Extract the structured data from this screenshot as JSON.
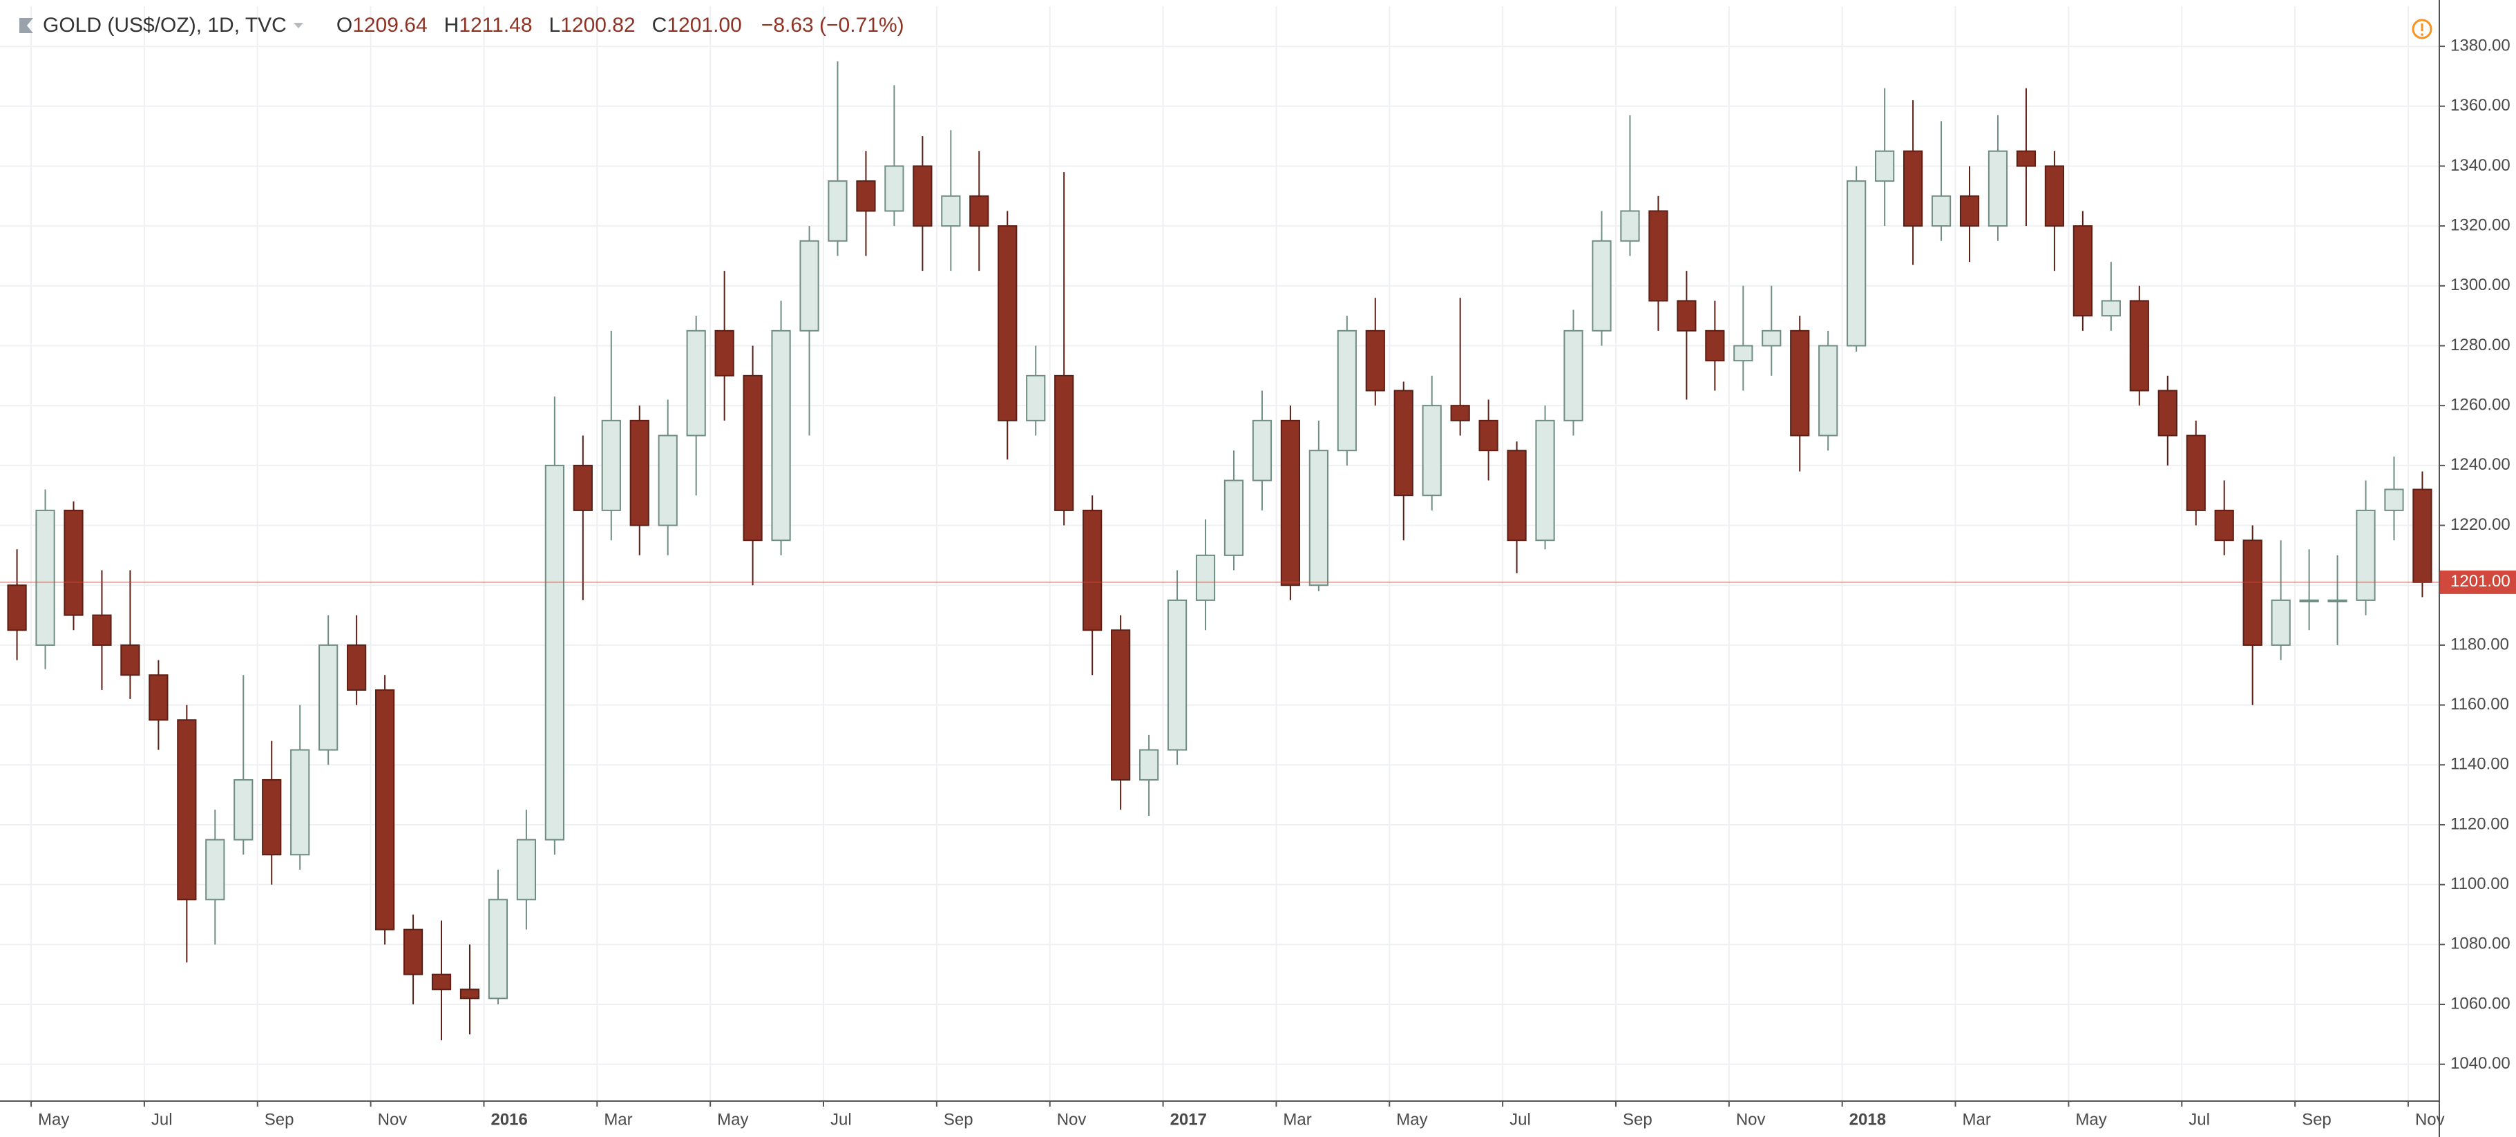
{
  "chart_data": {
    "type": "candlestick",
    "title": "GOLD (US$/OZ), 1D, TVC",
    "legend": [
      {
        "key": "O",
        "value": "1209.64"
      },
      {
        "key": "H",
        "value": "1211.48"
      },
      {
        "key": "L",
        "value": "1200.82"
      },
      {
        "key": "C",
        "value": "1201.00"
      }
    ],
    "change": "−8.63 (−0.71%)",
    "candles": {
      "open": [
        1200,
        1180,
        1225,
        1190,
        1180,
        1170,
        1155,
        1095,
        1115,
        1135,
        1110,
        1145,
        1180,
        1165,
        1085,
        1070,
        1065,
        1062,
        1095,
        1115,
        1240,
        1225,
        1255,
        1220,
        1250,
        1285,
        1270,
        1215,
        1285,
        1315,
        1335,
        1325,
        1340,
        1320,
        1330,
        1320,
        1255,
        1270,
        1225,
        1185,
        1135,
        1145,
        1195,
        1210,
        1235,
        1255,
        1200,
        1245,
        1285,
        1265,
        1230,
        1260,
        1255,
        1245,
        1215,
        1255,
        1285,
        1315,
        1325,
        1295,
        1285,
        1275,
        1280,
        1285,
        1250,
        1280,
        1335,
        1345,
        1320,
        1330,
        1320,
        1345,
        1340,
        1320,
        1290,
        1295,
        1265,
        1250,
        1225,
        1215,
        1180,
        1195,
        1195,
        1195,
        1225,
        1232
      ],
      "high": [
        1212,
        1232,
        1228,
        1205,
        1205,
        1175,
        1160,
        1125,
        1170,
        1148,
        1160,
        1190,
        1190,
        1170,
        1090,
        1088,
        1080,
        1105,
        1125,
        1263,
        1250,
        1285,
        1260,
        1262,
        1290,
        1305,
        1280,
        1295,
        1320,
        1375,
        1345,
        1367,
        1350,
        1352,
        1345,
        1325,
        1280,
        1338,
        1230,
        1190,
        1150,
        1205,
        1222,
        1245,
        1265,
        1260,
        1255,
        1290,
        1296,
        1268,
        1270,
        1296,
        1262,
        1248,
        1260,
        1292,
        1325,
        1357,
        1330,
        1305,
        1295,
        1300,
        1300,
        1290,
        1285,
        1340,
        1366,
        1362,
        1355,
        1340,
        1357,
        1366,
        1345,
        1325,
        1308,
        1300,
        1270,
        1255,
        1235,
        1220,
        1215,
        1212,
        1210,
        1235,
        1243,
        1238
      ],
      "low": [
        1175,
        1172,
        1185,
        1165,
        1162,
        1145,
        1074,
        1080,
        1110,
        1100,
        1105,
        1140,
        1160,
        1080,
        1060,
        1048,
        1050,
        1060,
        1085,
        1110,
        1195,
        1215,
        1210,
        1210,
        1230,
        1255,
        1200,
        1210,
        1250,
        1310,
        1310,
        1320,
        1305,
        1305,
        1305,
        1242,
        1250,
        1220,
        1170,
        1125,
        1123,
        1140,
        1185,
        1205,
        1225,
        1195,
        1198,
        1240,
        1260,
        1215,
        1225,
        1250,
        1235,
        1204,
        1212,
        1250,
        1280,
        1310,
        1285,
        1262,
        1265,
        1265,
        1270,
        1238,
        1245,
        1278,
        1320,
        1307,
        1315,
        1308,
        1315,
        1320,
        1305,
        1285,
        1285,
        1260,
        1240,
        1220,
        1210,
        1160,
        1175,
        1185,
        1180,
        1190,
        1215,
        1196
      ],
      "close": [
        1185,
        1225,
        1190,
        1180,
        1170,
        1155,
        1095,
        1115,
        1135,
        1110,
        1145,
        1180,
        1165,
        1085,
        1070,
        1065,
        1062,
        1095,
        1115,
        1240,
        1225,
        1255,
        1220,
        1250,
        1285,
        1270,
        1215,
        1285,
        1315,
        1335,
        1325,
        1340,
        1320,
        1330,
        1320,
        1255,
        1270,
        1225,
        1185,
        1135,
        1145,
        1195,
        1210,
        1235,
        1255,
        1200,
        1245,
        1285,
        1265,
        1230,
        1260,
        1255,
        1245,
        1215,
        1255,
        1285,
        1315,
        1325,
        1295,
        1285,
        1275,
        1280,
        1285,
        1250,
        1280,
        1335,
        1345,
        1320,
        1330,
        1320,
        1345,
        1340,
        1320,
        1290,
        1295,
        1265,
        1250,
        1225,
        1215,
        1180,
        1195,
        1195,
        1195,
        1225,
        1232,
        1201
      ]
    },
    "up_color": "#dde9e4",
    "up_border": "#6f8d82",
    "down_color": "#8e3324",
    "down_border": "#5c1f15",
    "last_price": {
      "value": 1201.0,
      "label": "1201.00"
    },
    "last_price_color": "#d0493c",
    "xlim": [
      -0.1,
      86.1
    ],
    "xticks": [
      {
        "value": 1,
        "label": "May"
      },
      {
        "value": 5,
        "label": "Jul"
      },
      {
        "value": 9,
        "label": "Sep"
      },
      {
        "value": 13,
        "label": "Nov"
      },
      {
        "value": 17,
        "label": "2016"
      },
      {
        "value": 21,
        "label": "Mar"
      },
      {
        "value": 25,
        "label": "May"
      },
      {
        "value": 29,
        "label": "Jul"
      },
      {
        "value": 33,
        "label": "Sep"
      },
      {
        "value": 37,
        "label": "Nov"
      },
      {
        "value": 41,
        "label": "2017"
      },
      {
        "value": 45,
        "label": "Mar"
      },
      {
        "value": 49,
        "label": "May"
      },
      {
        "value": 53,
        "label": "Jul"
      },
      {
        "value": 57,
        "label": "Sep"
      },
      {
        "value": 61,
        "label": "Nov"
      },
      {
        "value": 65,
        "label": "2018"
      },
      {
        "value": 69,
        "label": "Mar"
      },
      {
        "value": 73,
        "label": "May"
      },
      {
        "value": 77,
        "label": "Jul"
      },
      {
        "value": 81,
        "label": "Sep"
      },
      {
        "value": 85,
        "label": "Nov"
      }
    ],
    "ylim": [
      1027.7,
      1393.4
    ],
    "yticks": [
      {
        "value": 1040,
        "label": "1040.00"
      },
      {
        "value": 1060,
        "label": "1060.00"
      },
      {
        "value": 1080,
        "label": "1080.00"
      },
      {
        "value": 1100,
        "label": "1100.00"
      },
      {
        "value": 1120,
        "label": "1120.00"
      },
      {
        "value": 1140,
        "label": "1140.00"
      },
      {
        "value": 1160,
        "label": "1160.00"
      },
      {
        "value": 1180,
        "label": "1180.00"
      },
      {
        "value": 1200,
        "label": "1200.00"
      },
      {
        "value": 1220,
        "label": "1220.00"
      },
      {
        "value": 1240,
        "label": "1240.00"
      },
      {
        "value": 1260,
        "label": "1260.00"
      },
      {
        "value": 1280,
        "label": "1280.00"
      },
      {
        "value": 1300,
        "label": "1300.00"
      },
      {
        "value": 1320,
        "label": "1320.00"
      },
      {
        "value": 1340,
        "label": "1340.00"
      },
      {
        "value": 1360,
        "label": "1360.00"
      },
      {
        "value": 1380,
        "label": "1380.00"
      }
    ],
    "grid": true
  }
}
